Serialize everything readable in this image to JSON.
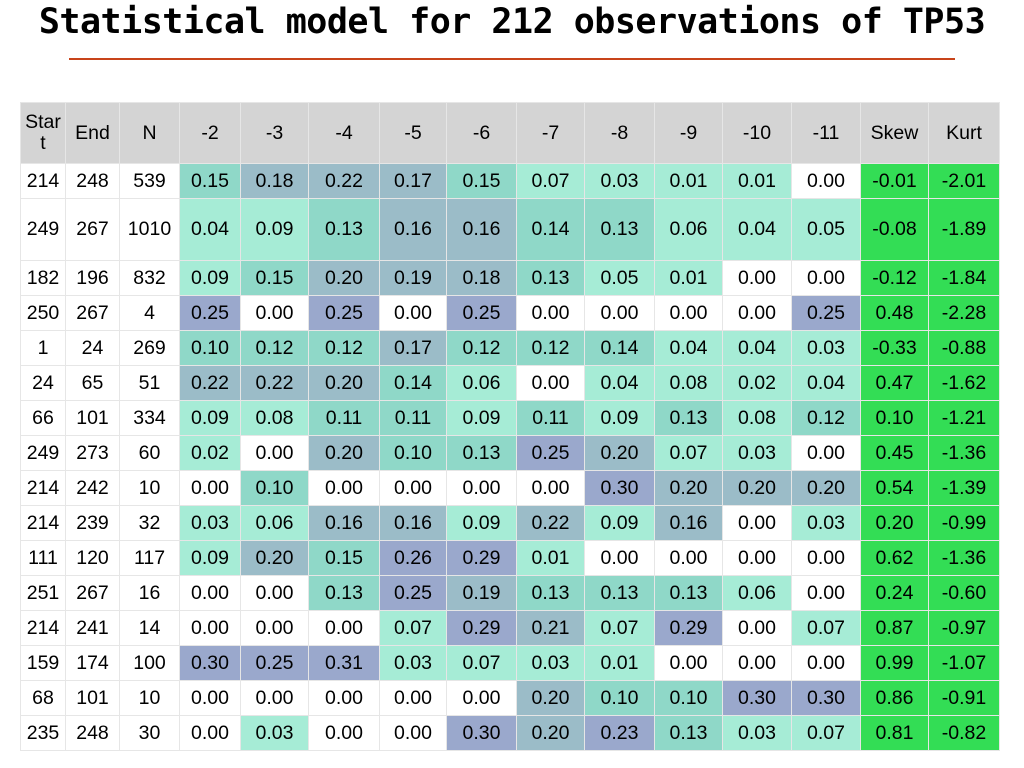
{
  "title": "Statistical model for 212 observations of TP53",
  "table": {
    "headers": [
      "Star\nt",
      "End",
      "N",
      "-2",
      "-3",
      "-4",
      "-5",
      "-6",
      "-7",
      "-8",
      "-9",
      "-10",
      "-11",
      "Skew",
      "Kurt"
    ],
    "rows": [
      [
        "214",
        "248",
        "539",
        "0.15",
        "0.18",
        "0.22",
        "0.17",
        "0.15",
        "0.07",
        "0.03",
        "0.01",
        "0.01",
        "0.00",
        "-0.01",
        "-2.01"
      ],
      [
        "249",
        "267",
        "1010",
        "0.04",
        "0.09",
        "0.13",
        "0.16",
        "0.16",
        "0.14",
        "0.13",
        "0.06",
        "0.04",
        "0.05",
        "-0.08",
        "-1.89"
      ],
      [
        "182",
        "196",
        "832",
        "0.09",
        "0.15",
        "0.20",
        "0.19",
        "0.18",
        "0.13",
        "0.05",
        "0.01",
        "0.00",
        "0.00",
        "-0.12",
        "-1.84"
      ],
      [
        "250",
        "267",
        "4",
        "0.25",
        "0.00",
        "0.25",
        "0.00",
        "0.25",
        "0.00",
        "0.00",
        "0.00",
        "0.00",
        "0.25",
        "0.48",
        "-2.28"
      ],
      [
        "1",
        "24",
        "269",
        "0.10",
        "0.12",
        "0.12",
        "0.17",
        "0.12",
        "0.12",
        "0.14",
        "0.04",
        "0.04",
        "0.03",
        "-0.33",
        "-0.88"
      ],
      [
        "24",
        "65",
        "51",
        "0.22",
        "0.22",
        "0.20",
        "0.14",
        "0.06",
        "0.00",
        "0.04",
        "0.08",
        "0.02",
        "0.04",
        "0.47",
        "-1.62"
      ],
      [
        "66",
        "101",
        "334",
        "0.09",
        "0.08",
        "0.11",
        "0.11",
        "0.09",
        "0.11",
        "0.09",
        "0.13",
        "0.08",
        "0.12",
        "0.10",
        "-1.21"
      ],
      [
        "249",
        "273",
        "60",
        "0.02",
        "0.00",
        "0.20",
        "0.10",
        "0.13",
        "0.25",
        "0.20",
        "0.07",
        "0.03",
        "0.00",
        "0.45",
        "-1.36"
      ],
      [
        "214",
        "242",
        "10",
        "0.00",
        "0.10",
        "0.00",
        "0.00",
        "0.00",
        "0.00",
        "0.30",
        "0.20",
        "0.20",
        "0.20",
        "0.54",
        "-1.39"
      ],
      [
        "214",
        "239",
        "32",
        "0.03",
        "0.06",
        "0.16",
        "0.16",
        "0.09",
        "0.22",
        "0.09",
        "0.16",
        "0.00",
        "0.03",
        "0.20",
        "-0.99"
      ],
      [
        "111",
        "120",
        "117",
        "0.09",
        "0.20",
        "0.15",
        "0.26",
        "0.29",
        "0.01",
        "0.00",
        "0.00",
        "0.00",
        "0.00",
        "0.62",
        "-1.36"
      ],
      [
        "251",
        "267",
        "16",
        "0.00",
        "0.00",
        "0.13",
        "0.25",
        "0.19",
        "0.13",
        "0.13",
        "0.13",
        "0.06",
        "0.00",
        "0.24",
        "-0.60"
      ],
      [
        "214",
        "241",
        "14",
        "0.00",
        "0.00",
        "0.00",
        "0.07",
        "0.29",
        "0.21",
        "0.07",
        "0.29",
        "0.00",
        "0.07",
        "0.87",
        "-0.97"
      ],
      [
        "159",
        "174",
        "100",
        "0.30",
        "0.25",
        "0.31",
        "0.03",
        "0.07",
        "0.03",
        "0.01",
        "0.00",
        "0.00",
        "0.00",
        "0.99",
        "-1.07"
      ],
      [
        "68",
        "101",
        "10",
        "0.00",
        "0.00",
        "0.00",
        "0.00",
        "0.00",
        "0.20",
        "0.10",
        "0.10",
        "0.30",
        "0.30",
        "0.86",
        "-0.91"
      ],
      [
        "235",
        "248",
        "30",
        "0.00",
        "0.03",
        "0.00",
        "0.00",
        "0.30",
        "0.20",
        "0.23",
        "0.13",
        "0.03",
        "0.07",
        "0.81",
        "-0.82"
      ]
    ],
    "colors": {
      "header": "#d4d4d4",
      "level_0": "#ffffff",
      "level_1": "#a6ecd6",
      "level_2": "#8fd8c8",
      "level_3": "#9bbcc8",
      "level_4": "#9aa8cc",
      "stats": "#33dd55",
      "title_rule": "#c8441a"
    }
  }
}
